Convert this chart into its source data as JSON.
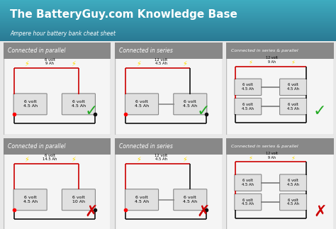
{
  "title": "The BatteryGuy.com Knowledge Base",
  "subtitle": "Ampere hour battery bank cheat sheet",
  "header_bg_top": "#3a8fa8",
  "header_bg_bottom": "#2a7a94",
  "body_bg": "#e8e8e8",
  "panel_bg": "#f5f5f5",
  "panel_header_bg": "#888888",
  "panel_header_text": "#ffffff",
  "battery_bg": "#e0e0e0",
  "battery_border": "#888888",
  "wire_red": "#cc0000",
  "wire_black": "#111111",
  "bolt_color": "#ffdd00",
  "check_color": "#22aa22",
  "cross_color": "#cc0000",
  "panels": [
    {
      "title": "Connected in parallel",
      "row": 0,
      "col": 0,
      "valid": true,
      "output_label": "6 volt\n9 Ah",
      "bat1": "6 volt\n4.5 Ah",
      "bat2": "6 volt\n4.5 Ah",
      "type": "parallel"
    },
    {
      "title": "Connected in series",
      "row": 0,
      "col": 1,
      "valid": true,
      "output_label": "12 volt\n4.5 Ah",
      "bat1": "6 volt\n4.5 Ah",
      "bat2": "6 volt\n4.5 Ah",
      "type": "series"
    },
    {
      "title": "Connected in series & parallel",
      "row": 0,
      "col": 2,
      "valid": true,
      "output_label": "12 volt\n9 Ah",
      "bat1": "6 volt\n4.5 Ah",
      "bat2": "6 volt\n4.5 Ah",
      "type": "series_parallel",
      "bat3": "6 volt\n4.5 Ah",
      "bat4": "6 volt\n4.5 Ah"
    },
    {
      "title": "Connected in parallel",
      "row": 1,
      "col": 0,
      "valid": false,
      "output_label": "6 volt\n14.5 Ah",
      "bat1": "6 volt\n4.5 Ah",
      "bat2": "6 volt\n10 Ah",
      "type": "parallel"
    },
    {
      "title": "Connected in series",
      "row": 1,
      "col": 1,
      "valid": false,
      "output_label": "12 volt\n4.5 Ah",
      "bat1": "6 volt\n4.5 Ah",
      "bat2": "6 volt\n4.5 Ah",
      "type": "series"
    },
    {
      "title": "Connected in series & parallel",
      "row": 1,
      "col": 2,
      "valid": false,
      "output_label": "12 volt\n9 Ah",
      "bat1": "6 volt\n4.5 Ah",
      "bat2": "6 volt\n4.5 Ah",
      "type": "series_parallel",
      "bat3": "6 volt\n4.5 Ah",
      "bat4": "6 volt\n4.5 Ah"
    }
  ]
}
